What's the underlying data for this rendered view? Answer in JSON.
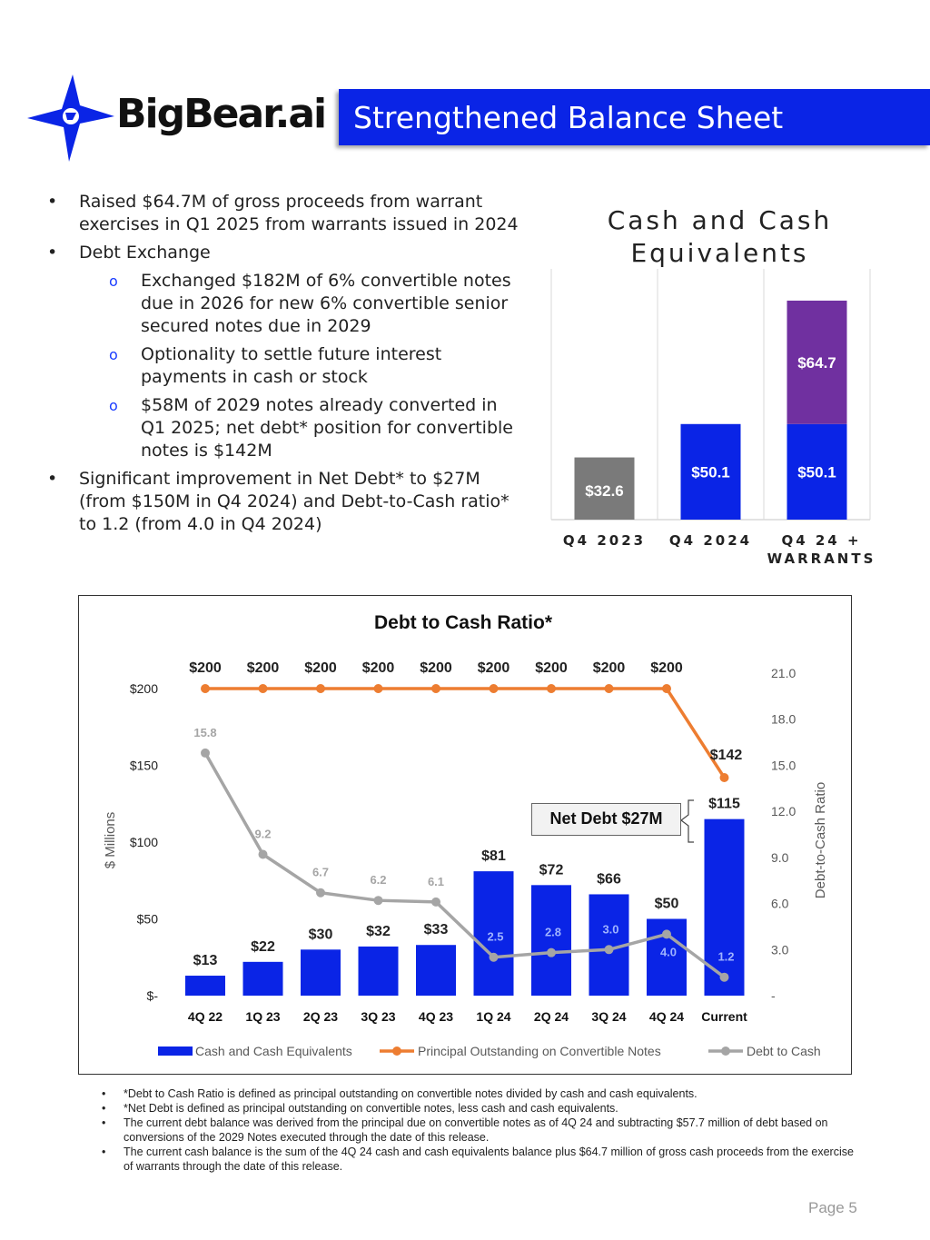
{
  "header": {
    "logo_text": "BigBear.ai",
    "title": "Strengthened Balance Sheet"
  },
  "bullets": [
    {
      "level": 1,
      "text": "Raised $64.7M of gross proceeds from warrant exercises in Q1 2025 from warrants issued in 2024"
    },
    {
      "level": 1,
      "text": "Debt Exchange"
    },
    {
      "level": 2,
      "text": "Exchanged $182M of 6% convertible notes due in 2026 for new 6% convertible senior secured notes due in 2029"
    },
    {
      "level": 2,
      "text": "Optionality to settle future interest payments in cash or stock"
    },
    {
      "level": 2,
      "text": "$58M of 2029 notes already converted in Q1 2025; net debt* position for convertible notes is $142M"
    },
    {
      "level": 1,
      "text": "Significant improvement in Net Debt* to $27M (from $150M in Q4 2024) and Debt-to-Cash ratio* to 1.2 (from 4.0 in Q4 2024)"
    }
  ],
  "chart_data": [
    {
      "type": "bar",
      "stacked": true,
      "title": "Cash and Cash Equivalents",
      "categories": [
        "Q4 2023",
        "Q4 2024",
        "Q4 24 + WARRANTS"
      ],
      "series": [
        {
          "name": "Cash",
          "values": [
            32.6,
            50.1,
            50.1
          ],
          "labels": [
            "$32.6",
            "$50.1",
            "$50.1"
          ],
          "colors": [
            "#7a7a7a",
            "#0a24e6",
            "#0a24e6"
          ]
        },
        {
          "name": "Warrant proceeds",
          "values": [
            0,
            0,
            64.7
          ],
          "labels": [
            "",
            "",
            "$64.7"
          ],
          "colors": [
            "#7030a0",
            "#7030a0",
            "#7030a0"
          ]
        }
      ],
      "ylim": [
        0,
        130
      ]
    },
    {
      "type": "bar",
      "title": "Debt to Cash Ratio*",
      "categories": [
        "4Q 22",
        "1Q 23",
        "2Q 23",
        "3Q 23",
        "4Q 23",
        "1Q 24",
        "2Q 24",
        "3Q 24",
        "4Q 24",
        "Current"
      ],
      "ylabel": "$ Millions",
      "y2label": "Debt-to-Cash Ratio",
      "ylim": [
        0,
        200
      ],
      "y_ticks": [
        "$-",
        "$50",
        "$100",
        "$150",
        "$200"
      ],
      "y2lim": [
        0,
        21
      ],
      "y2_ticks": [
        "-",
        "3.0",
        "6.0",
        "9.0",
        "12.0",
        "15.0",
        "18.0",
        "21.0"
      ],
      "series": [
        {
          "name": "Cash and Cash Equivalents",
          "kind": "bar",
          "color": "#0a24e6",
          "values": [
            13,
            22,
            30,
            32,
            33,
            81,
            72,
            66,
            50,
            115
          ],
          "labels": [
            "$13",
            "$22",
            "$30",
            "$32",
            "$33",
            "$81",
            "$72",
            "$66",
            "$50",
            "$115"
          ]
        },
        {
          "name": "Principal Outstanding on Convertible Notes",
          "kind": "line",
          "color": "#ed7d31",
          "values": [
            200,
            200,
            200,
            200,
            200,
            200,
            200,
            200,
            200,
            142
          ],
          "labels": [
            "$200",
            "$200",
            "$200",
            "$200",
            "$200",
            "$200",
            "$200",
            "$200",
            "$200",
            "$142"
          ]
        },
        {
          "name": "Debt to Cash",
          "kind": "line",
          "axis": "right",
          "color": "#a5a5a5",
          "values": [
            15.8,
            9.2,
            6.7,
            6.2,
            6.1,
            2.5,
            2.8,
            3.0,
            4.0,
            1.2
          ],
          "labels": [
            "15.8",
            "9.2",
            "6.7",
            "6.2",
            "6.1",
            "2.5",
            "2.8",
            "3.0",
            "4.0",
            "1.2"
          ]
        }
      ],
      "annotation": "Net Debt $27M"
    }
  ],
  "footnotes": [
    "*Debt to Cash Ratio is defined as principal outstanding on convertible notes divided by cash and cash equivalents.",
    "*Net Debt is defined as principal outstanding on convertible notes, less cash and cash equivalents.",
    "The current debt balance was derived from the principal due on convertible notes as of 4Q 24 and subtracting $57.7 million of debt based on conversions of the 2029 Notes executed through the date of this release.",
    "The current cash balance is the sum of the 4Q 24 cash and cash equivalents balance plus $64.7 million of gross cash proceeds from the exercise of warrants through the date of this release."
  ],
  "footer": {
    "page": "Page 5"
  }
}
